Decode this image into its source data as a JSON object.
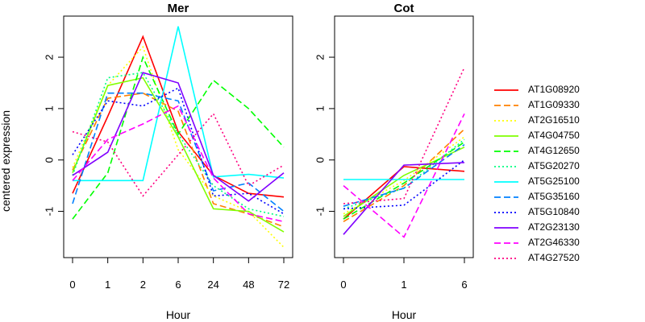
{
  "chart_data": {
    "type": "line",
    "ylabel": "centered expression",
    "ylim": [
      -1.9,
      2.8
    ],
    "yticks": [
      -1,
      0,
      1,
      2
    ],
    "series": [
      {
        "name": "AT1G08920",
        "color": "#ff0000",
        "dash": "solid",
        "Mer": [
          -0.65,
          0.85,
          2.4,
          0.55,
          -0.3,
          -0.65,
          -0.72
        ],
        "Cot": [
          -1.15,
          -0.13,
          -0.22
        ]
      },
      {
        "name": "AT1G09330",
        "color": "#ff8000",
        "dash": "dashed",
        "Mer": [
          -0.2,
          1.2,
          1.3,
          0.95,
          -0.85,
          -1.05,
          -1.3
        ],
        "Cot": [
          -1.2,
          -0.5,
          0.6
        ]
      },
      {
        "name": "AT2G16510",
        "color": "#ffff00",
        "dash": "dotted",
        "Mer": [
          -0.15,
          1.45,
          2.2,
          0.2,
          -0.7,
          -1.0,
          -1.7
        ],
        "Cot": [
          -1.05,
          -0.4,
          0.45
        ]
      },
      {
        "name": "AT4G04750",
        "color": "#80ff00",
        "dash": "solid",
        "Mer": [
          -0.25,
          1.45,
          1.6,
          0.45,
          -0.95,
          -1.0,
          -1.4
        ],
        "Cot": [
          -1.1,
          -0.3,
          0.25
        ]
      },
      {
        "name": "AT4G12650",
        "color": "#00ff00",
        "dash": "dashed",
        "Mer": [
          -1.15,
          -0.25,
          2.0,
          0.5,
          1.55,
          1.0,
          0.25
        ],
        "Cot": [
          -1.15,
          -0.45,
          0.35
        ]
      },
      {
        "name": "AT5G20270",
        "color": "#00ff80",
        "dash": "dotted",
        "Mer": [
          -0.3,
          1.6,
          1.7,
          0.5,
          -0.5,
          -0.95,
          -1.1
        ],
        "Cot": [
          -0.95,
          -0.55,
          0.4
        ]
      },
      {
        "name": "AT5G25100",
        "color": "#00ffff",
        "dash": "solid",
        "Mer": [
          -0.4,
          -0.4,
          -0.4,
          2.6,
          -0.33,
          -0.28,
          -0.35
        ],
        "Cot": [
          -0.38,
          -0.38,
          -0.38
        ]
      },
      {
        "name": "AT5G35160",
        "color": "#0080ff",
        "dash": "dashed",
        "Mer": [
          -0.85,
          1.3,
          1.3,
          1.15,
          -0.6,
          -0.45,
          -1.0
        ],
        "Cot": [
          -0.9,
          -0.55,
          0.3
        ]
      },
      {
        "name": "AT5G10840",
        "color": "#0000ff",
        "dash": "dotted",
        "Mer": [
          0.1,
          1.15,
          1.05,
          1.4,
          -0.7,
          -0.65,
          -1.05
        ],
        "Cot": [
          -0.95,
          -0.88,
          0.0
        ]
      },
      {
        "name": "AT2G23130",
        "color": "#8000ff",
        "dash": "solid",
        "Mer": [
          -0.3,
          0.15,
          1.7,
          1.5,
          -0.3,
          -0.8,
          -0.25
        ],
        "Cot": [
          -1.45,
          -0.1,
          -0.05
        ]
      },
      {
        "name": "AT2G46330",
        "color": "#ff00ff",
        "dash": "dashed",
        "Mer": [
          -0.4,
          0.4,
          0.7,
          1.05,
          -0.35,
          -1.05,
          -1.2
        ],
        "Cot": [
          -0.5,
          -1.5,
          0.9
        ]
      },
      {
        "name": "AT4G27520",
        "color": "#ff0080",
        "dash": "dotted",
        "Mer": [
          0.55,
          0.35,
          -0.7,
          0.1,
          0.9,
          -0.5,
          -0.1
        ],
        "Cot": [
          -0.85,
          -0.75,
          1.8
        ]
      }
    ],
    "panels": [
      {
        "id": "Mer",
        "title": "Mer",
        "xlabel": "Hour",
        "categories": [
          "0",
          "1",
          "2",
          "6",
          "24",
          "48",
          "72"
        ]
      },
      {
        "id": "Cot",
        "title": "Cot",
        "xlabel": "Hour",
        "categories": [
          "0",
          "1",
          "6"
        ]
      }
    ],
    "legend_position": "right",
    "grid": false
  }
}
